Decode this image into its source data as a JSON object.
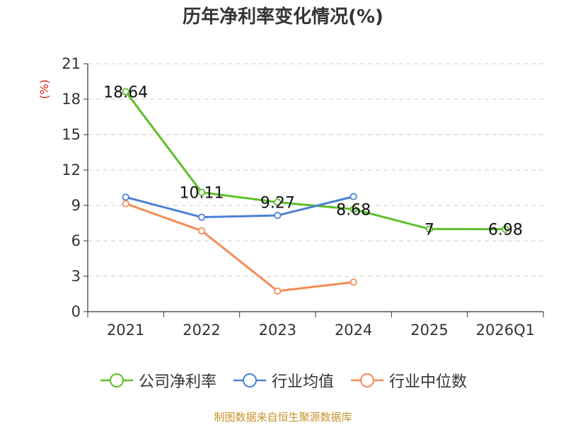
{
  "title": "历年净利率变化情况(%)",
  "source": "制图数据来自恒生聚源数据库",
  "chart_data": {
    "type": "line",
    "title": "历年净利率变化情况(%)",
    "ylabel": "(%)",
    "xlabel": "",
    "ylim": [
      0,
      21
    ],
    "yticks": [
      0,
      3,
      6,
      9,
      12,
      15,
      18,
      21
    ],
    "grid": true,
    "legend_position": "bottom",
    "categories": [
      "2021",
      "2022",
      "2023",
      "2024",
      "2025",
      "2026Q1"
    ],
    "series": [
      {
        "name": "公司净利率",
        "color": "#5cbf2a",
        "values": [
          18.64,
          10.11,
          9.27,
          8.68,
          7,
          6.98
        ],
        "labels": [
          "18.64",
          "10.11",
          "9.27",
          "8.68",
          "7",
          "6.98"
        ]
      },
      {
        "name": "行业均值",
        "color": "#4c7fd6",
        "values": [
          9.7,
          8.0,
          8.15,
          9.75,
          null,
          null
        ]
      },
      {
        "name": "行业中位数",
        "color": "#f28c55",
        "values": [
          9.15,
          6.85,
          1.75,
          2.5,
          null,
          null
        ]
      }
    ]
  }
}
